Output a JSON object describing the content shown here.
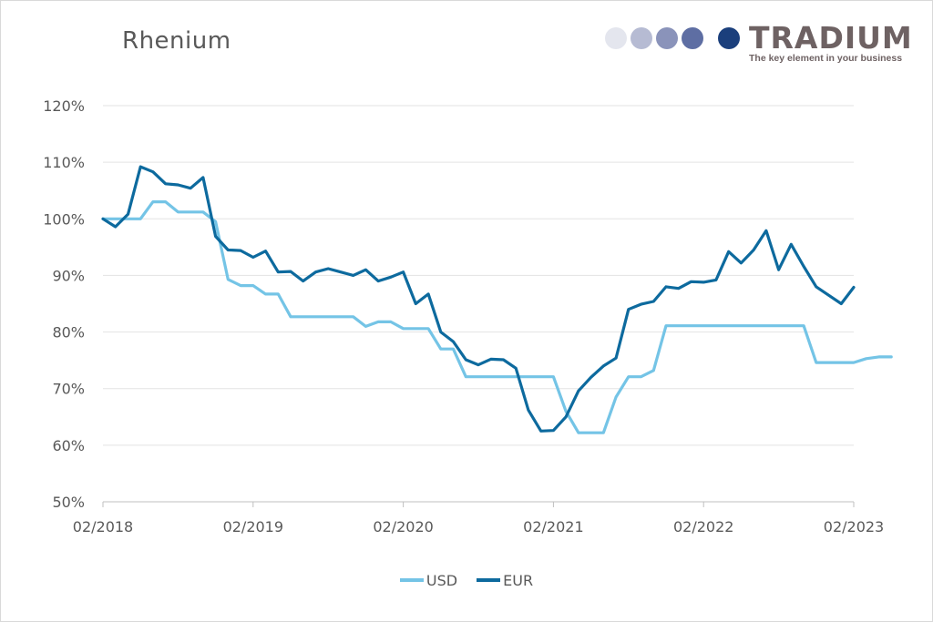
{
  "chart_data": {
    "type": "line",
    "title": "Rhenium",
    "xlabel": "",
    "ylabel": "",
    "ylim": [
      50,
      120
    ],
    "y_ticks": [
      50,
      60,
      70,
      80,
      90,
      100,
      110,
      120
    ],
    "y_tick_suffix": "%",
    "x_tick_labels": [
      "02/2018",
      "02/2019",
      "02/2020",
      "02/2021",
      "02/2022",
      "02/2023"
    ],
    "x_range_months": [
      0,
      60
    ],
    "legend_position": "bottom-center",
    "grid": "horizontal",
    "series": [
      {
        "name": "USD",
        "color": "#74c4e6",
        "points": [
          [
            0,
            100
          ],
          [
            1,
            100
          ],
          [
            2,
            100
          ],
          [
            3,
            100
          ],
          [
            4,
            103
          ],
          [
            5,
            103
          ],
          [
            6,
            101.2
          ],
          [
            7,
            101.2
          ],
          [
            8,
            101.2
          ],
          [
            9,
            99.5
          ],
          [
            10,
            89.3
          ],
          [
            11,
            88.2
          ],
          [
            12,
            88.2
          ],
          [
            13,
            86.7
          ],
          [
            14,
            86.7
          ],
          [
            15,
            82.7
          ],
          [
            16,
            82.7
          ],
          [
            17,
            82.7
          ],
          [
            18,
            82.7
          ],
          [
            19,
            82.7
          ],
          [
            20,
            82.7
          ],
          [
            21,
            81
          ],
          [
            22,
            81.8
          ],
          [
            23,
            81.8
          ],
          [
            24,
            80.6
          ],
          [
            25,
            80.6
          ],
          [
            26,
            80.6
          ],
          [
            27,
            77
          ],
          [
            28,
            77
          ],
          [
            29,
            72.1
          ],
          [
            30,
            72.1
          ],
          [
            31,
            72.1
          ],
          [
            32,
            72.1
          ],
          [
            33,
            72.1
          ],
          [
            34,
            72.1
          ],
          [
            35,
            72.1
          ],
          [
            36,
            72.1
          ],
          [
            37,
            66
          ],
          [
            38,
            62.2
          ],
          [
            39,
            62.2
          ],
          [
            40,
            62.2
          ],
          [
            41,
            68.5
          ],
          [
            42,
            72.1
          ],
          [
            43,
            72.1
          ],
          [
            44,
            73.2
          ],
          [
            45,
            81.1
          ],
          [
            46,
            81.1
          ],
          [
            47,
            81.1
          ],
          [
            48,
            81.1
          ],
          [
            49,
            81.1
          ],
          [
            50,
            81.1
          ],
          [
            51,
            81.1
          ],
          [
            52,
            81.1
          ],
          [
            53,
            81.1
          ],
          [
            54,
            81.1
          ],
          [
            55,
            81.1
          ],
          [
            56,
            81.1
          ],
          [
            57,
            74.6
          ],
          [
            58,
            74.6
          ],
          [
            59,
            74.6
          ],
          [
            60,
            74.6
          ],
          [
            61,
            75.3
          ],
          [
            62,
            75.6
          ],
          [
            63,
            75.6
          ]
        ]
      },
      {
        "name": "EUR",
        "color": "#0d6a9e",
        "points": [
          [
            0,
            100
          ],
          [
            1,
            98.6
          ],
          [
            2,
            100.8
          ],
          [
            3,
            109.2
          ],
          [
            4,
            108.3
          ],
          [
            5,
            106.2
          ],
          [
            6,
            106
          ],
          [
            7,
            105.4
          ],
          [
            8,
            107.3
          ],
          [
            9,
            96.9
          ],
          [
            10,
            94.5
          ],
          [
            11,
            94.4
          ],
          [
            12,
            93.2
          ],
          [
            13,
            94.3
          ],
          [
            14,
            90.6
          ],
          [
            15,
            90.7
          ],
          [
            16,
            89
          ],
          [
            17,
            90.6
          ],
          [
            18,
            91.2
          ],
          [
            19,
            90.6
          ],
          [
            20,
            90
          ],
          [
            21,
            91
          ],
          [
            22,
            89
          ],
          [
            23,
            89.7
          ],
          [
            24,
            90.6
          ],
          [
            25,
            85
          ],
          [
            26,
            86.7
          ],
          [
            27,
            80
          ],
          [
            28,
            78.3
          ],
          [
            29,
            75.1
          ],
          [
            30,
            74.2
          ],
          [
            31,
            75.2
          ],
          [
            32,
            75.1
          ],
          [
            33,
            73.6
          ],
          [
            34,
            66.2
          ],
          [
            35,
            62.5
          ],
          [
            36,
            62.6
          ],
          [
            37,
            65
          ],
          [
            38,
            69.6
          ],
          [
            39,
            72
          ],
          [
            40,
            74
          ],
          [
            41,
            75.4
          ],
          [
            42,
            84
          ],
          [
            43,
            84.9
          ],
          [
            44,
            85.4
          ],
          [
            45,
            88
          ],
          [
            46,
            87.7
          ],
          [
            47,
            88.9
          ],
          [
            48,
            88.8
          ],
          [
            49,
            89.2
          ],
          [
            50,
            94.2
          ],
          [
            51,
            92.2
          ],
          [
            52,
            94.5
          ],
          [
            53,
            97.9
          ],
          [
            54,
            91
          ],
          [
            55,
            95.5
          ],
          [
            56,
            91.6
          ],
          [
            57,
            88
          ],
          [
            58,
            86.5
          ],
          [
            59,
            85
          ],
          [
            60,
            87.9
          ]
        ]
      }
    ]
  },
  "logo": {
    "name": "TRADIUM",
    "tagline": "The key element in your business",
    "dot_colors": [
      "#e4e6ee",
      "#b6bbd3",
      "#8a93ba",
      "#5e6ea3",
      "#1b3f7c"
    ]
  }
}
